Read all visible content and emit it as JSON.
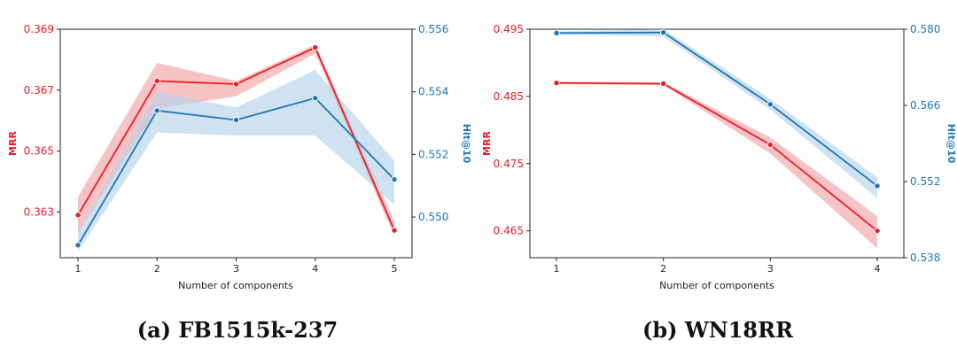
{
  "colors": {
    "mrr": "#ee1c25",
    "hit": "#1f77b4",
    "mrr_band": "#f4a3a6",
    "hit_band": "#b6d3ea"
  },
  "chart_data": [
    {
      "type": "line",
      "caption": "(a) FB1515k-237",
      "xlabel": "Number of components",
      "ylabel_left": "MRR",
      "ylabel_right": "Hit@10",
      "x": [
        1,
        2,
        3,
        4,
        5
      ],
      "x_ticks": [
        "1",
        "2",
        "3",
        "4",
        "5"
      ],
      "y_left_lim": [
        0.3615,
        0.369
      ],
      "y_left_ticks": [
        "0.363",
        "0.365",
        "0.367",
        "0.369"
      ],
      "y_left_tick_values": [
        0.363,
        0.365,
        0.367,
        0.369
      ],
      "y_right_lim": [
        0.5487,
        0.556
      ],
      "y_right_ticks": [
        "0.550",
        "0.552",
        "0.554",
        "0.556"
      ],
      "y_right_tick_values": [
        0.55,
        0.552,
        0.554,
        0.556
      ],
      "series": [
        {
          "name": "MRR",
          "axis": "left",
          "values": [
            0.3629,
            0.3673,
            0.3672,
            0.3684,
            0.3624
          ],
          "lower": [
            0.3623,
            0.3664,
            0.3668,
            0.3682,
            0.3622
          ],
          "upper": [
            0.3635,
            0.3679,
            0.3673,
            0.3685,
            0.3627
          ]
        },
        {
          "name": "Hit@10",
          "axis": "right",
          "values": [
            0.5491,
            0.5534,
            0.5531,
            0.5538,
            0.5512
          ],
          "lower": [
            0.5489,
            0.5527,
            0.5526,
            0.5526,
            0.5504
          ],
          "upper": [
            0.5495,
            0.554,
            0.5535,
            0.5547,
            0.5518
          ]
        }
      ]
    },
    {
      "type": "line",
      "caption": "(b) WN18RR",
      "xlabel": "Number of components",
      "ylabel_left": "MRR",
      "ylabel_right": "Hit@10",
      "x": [
        1,
        2,
        3,
        4
      ],
      "x_ticks": [
        "1",
        "2",
        "3",
        "4"
      ],
      "y_left_lim": [
        0.461,
        0.495
      ],
      "y_left_ticks": [
        "0.465",
        "0.475",
        "0.485",
        "0.495"
      ],
      "y_left_tick_values": [
        0.465,
        0.475,
        0.485,
        0.495
      ],
      "y_right_lim": [
        0.538,
        0.58
      ],
      "y_right_ticks": [
        "0.538",
        "0.552",
        "0.566",
        "0.580"
      ],
      "y_right_tick_values": [
        0.538,
        0.552,
        0.566,
        0.58
      ],
      "series": [
        {
          "name": "MRR",
          "axis": "left",
          "values": [
            0.487,
            0.4869,
            0.4778,
            0.465
          ],
          "lower": [
            0.4868,
            0.4867,
            0.4765,
            0.4624
          ],
          "upper": [
            0.4872,
            0.4871,
            0.4789,
            0.4672
          ]
        },
        {
          "name": "Hit@10",
          "axis": "right",
          "values": [
            0.5793,
            0.5794,
            0.5662,
            0.5512
          ],
          "lower": [
            0.579,
            0.5787,
            0.5652,
            0.549
          ],
          "upper": [
            0.5796,
            0.58,
            0.5672,
            0.5528
          ]
        }
      ]
    }
  ]
}
